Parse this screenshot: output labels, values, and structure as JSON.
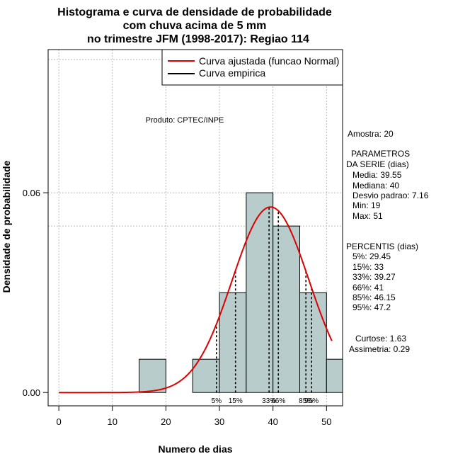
{
  "chart_data": {
    "type": "histogram",
    "title": [
      "Histograma e curva de densidade de probabilidade",
      "com chuva acima de 5 mm",
      "no trimestre JFM (1998-2017): Regiao 114"
    ],
    "xlabel": "Numero de dias",
    "ylabel": "Densidade de probabilidade",
    "xlim": [
      -2,
      53
    ],
    "ylim": [
      -0.004,
      0.103
    ],
    "x_ticks": [
      0,
      10,
      20,
      30,
      40,
      50
    ],
    "y_ticks": [
      {
        "value": 0.0,
        "label": "0.00"
      },
      {
        "value": 0.06,
        "label": "0.06"
      }
    ],
    "grid_x": [
      0,
      10,
      20,
      30,
      40,
      50
    ],
    "grid_y": [
      0.06,
      0.05,
      0.1
    ],
    "bins": [
      {
        "x0": 15,
        "x1": 20,
        "density": 0.01
      },
      {
        "x0": 20,
        "x1": 25,
        "density": 0.0
      },
      {
        "x0": 25,
        "x1": 30,
        "density": 0.01
      },
      {
        "x0": 30,
        "x1": 35,
        "density": 0.03
      },
      {
        "x0": 35,
        "x1": 40,
        "density": 0.06
      },
      {
        "x0": 40,
        "x1": 45,
        "density": 0.05
      },
      {
        "x0": 45,
        "x1": 50,
        "density": 0.03
      },
      {
        "x0": 50,
        "x1": 55,
        "density": 0.01
      }
    ],
    "bar_color": "#b8cccc",
    "normal_curve": {
      "mean": 39.55,
      "sd": 7.16,
      "x_from": 0,
      "x_to": 51,
      "color": "#dd0000"
    },
    "percentile_lines": [
      {
        "x": 29.45,
        "label": "5%"
      },
      {
        "x": 33,
        "label": "15%"
      },
      {
        "x": 39.27,
        "label": "33%"
      },
      {
        "x": 41,
        "label": "66%"
      },
      {
        "x": 46.15,
        "label": "85%"
      },
      {
        "x": 47.2,
        "label": "95%"
      }
    ],
    "legend": [
      {
        "label": "Curva ajustada (funcao Normal)",
        "color": "#dd0000"
      },
      {
        "label": "Curva empirica",
        "color": "#000000"
      }
    ],
    "legend_position": "top-right",
    "annotation": "Produto: CPTEC/INPE"
  },
  "side_panel": {
    "amostra": "Amostra: 20",
    "params_title_1": "PARAMETROS",
    "params_title_2": "DA SERIE (dias)",
    "media": "Media: 39.55",
    "mediana": "Mediana: 40",
    "desvio": "Desvio padrao: 7.16",
    "min": "Min: 19",
    "max": "Max: 51",
    "percentis_title": "PERCENTIS (dias)",
    "p5": "5%: 29.45",
    "p15": "15%: 33",
    "p33": "33%: 39.27",
    "p66": "66%: 41",
    "p85": "85%: 46.15",
    "p95": "95%: 47.2",
    "curtose": "Curtose: 1.63",
    "assimetria": "Assimetria: 0.29"
  }
}
